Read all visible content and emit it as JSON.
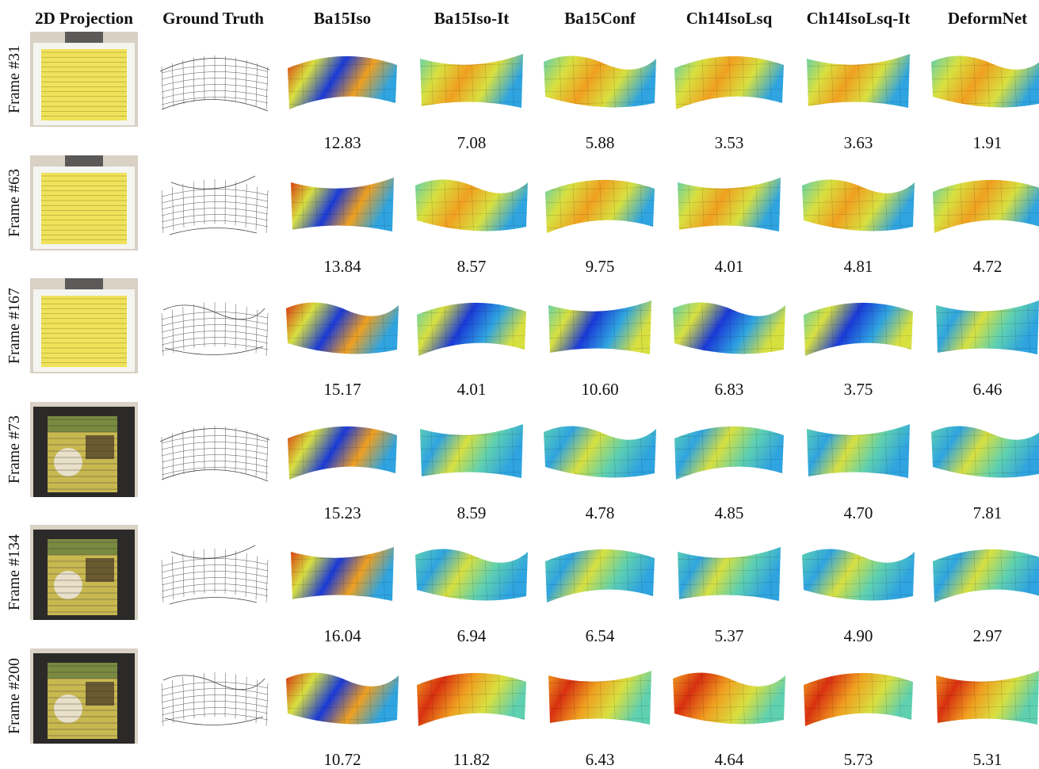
{
  "headers": {
    "projection": "2D Projection",
    "ground_truth": "Ground Truth",
    "methods": [
      "Ba15Iso",
      "Ba15Iso-It",
      "Ba15Conf",
      "Ch14IsoLsq",
      "Ch14IsoLsq-It",
      "DeformNet"
    ]
  },
  "rows": [
    {
      "frame": "Frame #31",
      "scores": [
        "12.83",
        "7.08",
        "5.88",
        "3.53",
        "3.63",
        "1.91"
      ]
    },
    {
      "frame": "Frame #63",
      "scores": [
        "13.84",
        "8.57",
        "9.75",
        "4.01",
        "4.81",
        "4.72"
      ]
    },
    {
      "frame": "Frame #167",
      "scores": [
        "15.17",
        "4.01",
        "10.60",
        "6.83",
        "3.75",
        "6.46"
      ]
    },
    {
      "frame": "Frame #73",
      "scores": [
        "15.23",
        "8.59",
        "4.78",
        "4.85",
        "4.70",
        "7.81"
      ]
    },
    {
      "frame": "Frame #134",
      "scores": [
        "16.04",
        "6.94",
        "6.54",
        "5.37",
        "4.90",
        "2.97"
      ]
    },
    {
      "frame": "Frame #200",
      "scores": [
        "10.72",
        "11.82",
        "6.43",
        "4.64",
        "5.73",
        "5.31"
      ]
    }
  ],
  "colors": {
    "mesh_gradient": [
      "#1a3ad8",
      "#2fa4e0",
      "#5fd0b0",
      "#d8e040",
      "#f0a020",
      "#d83010"
    ],
    "paper_yellow": "#f0e25a",
    "tshirt_dark": "#2c2a28",
    "wall_background": "#d8d1c4",
    "wireframe": "#555555"
  }
}
